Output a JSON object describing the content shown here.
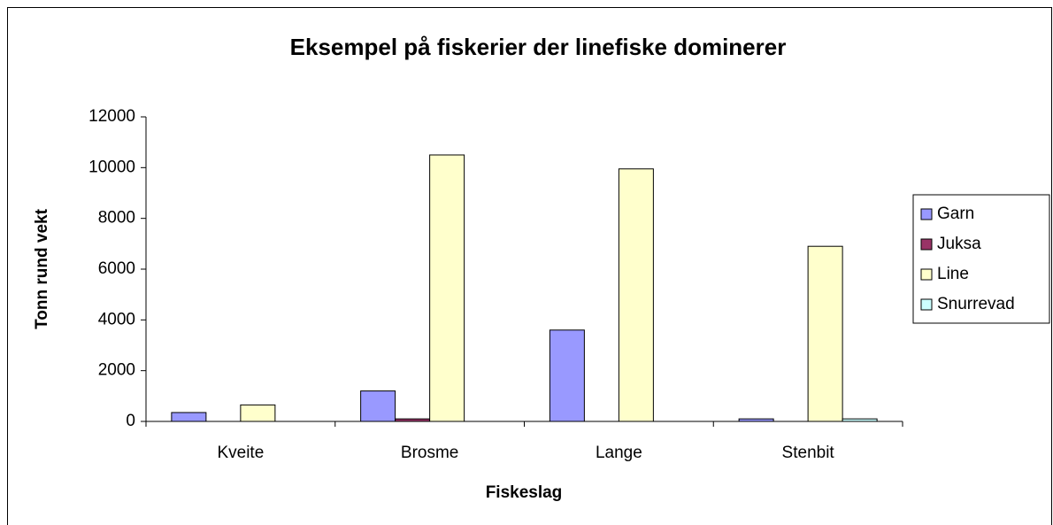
{
  "chart_data": {
    "type": "bar",
    "title": "Eksempel på fiskerier der linefiske dominerer",
    "x_label": "Fiskeslag",
    "y_label": "Tonn rund vekt",
    "categories": [
      "Kveite",
      "Brosme",
      "Lange",
      "Stenbit"
    ],
    "series": [
      {
        "name": "Garn",
        "color": "#9999ff",
        "values": [
          350,
          1200,
          3600,
          100
        ]
      },
      {
        "name": "Juksa",
        "color": "#993366",
        "values": [
          0,
          100,
          0,
          0
        ]
      },
      {
        "name": "Line",
        "color": "#ffffcc",
        "values": [
          650,
          10500,
          9950,
          6900
        ]
      },
      {
        "name": "Snurrevad",
        "color": "#ccffff",
        "values": [
          0,
          0,
          0,
          100
        ]
      }
    ],
    "ylim": [
      0,
      12000
    ],
    "yticks": [
      0,
      2000,
      4000,
      6000,
      8000,
      10000,
      12000
    ],
    "grid": false,
    "legend": "right"
  }
}
